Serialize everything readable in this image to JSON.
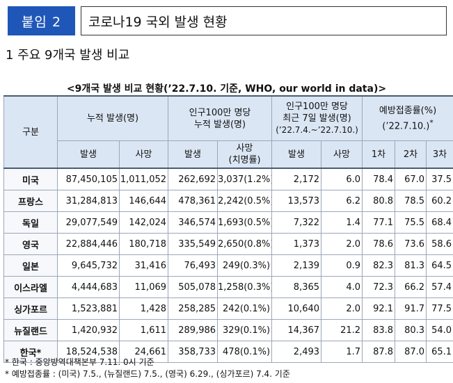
{
  "header": {
    "badge": "붙임 2",
    "title": "코로나19 국외 발생 현황"
  },
  "section_title": "1  주요 9개국 발생 비교",
  "table_caption": "<9개국 발생 비교 현황(’22.7.10. 기준, WHO, our world in data)>",
  "columns": {
    "group": "구분",
    "cumulative": "누적 발생(명)",
    "per_million_line1": "인구100만 명당",
    "per_million_line2": "누적 발생(명)",
    "recent_line1": "인구100만 명당",
    "recent_line2": "최근 7일 발생(명)",
    "recent_line3": "(’22.7.4.~’22.7.10.)",
    "vaccine_line1": "예방접종률(%)",
    "vaccine_line2": "(’22.7.10.)",
    "vaccine_mark": "*",
    "cases": "발생",
    "deaths": "사망",
    "cases2": "발생",
    "deaths2_line1": "사망",
    "deaths2_line2": "(치명률)",
    "cases3": "발생",
    "deaths3": "사망",
    "dose1": "1차",
    "dose2": "2차",
    "dose3": "3차"
  },
  "rows": [
    {
      "country": "미국",
      "cases": "87,450,105",
      "deaths": "1,011,052",
      "cases_pm": "262,692",
      "deaths_pm": "3,037(1.2%)",
      "recent_cases": "2,172",
      "recent_deaths": "6.0",
      "d1": "78.4",
      "d2": "67.0",
      "d3": "37.5"
    },
    {
      "country": "프랑스",
      "cases": "31,284,813",
      "deaths": "146,644",
      "cases_pm": "478,361",
      "deaths_pm": "2,242(0.5%)",
      "recent_cases": "13,573",
      "recent_deaths": "6.2",
      "d1": "80.8",
      "d2": "78.5",
      "d3": "60.2"
    },
    {
      "country": "독일",
      "cases": "29,077,549",
      "deaths": "142,024",
      "cases_pm": "346,574",
      "deaths_pm": "1,693(0.5%)",
      "recent_cases": "7,322",
      "recent_deaths": "1.4",
      "d1": "77.1",
      "d2": "75.5",
      "d3": "68.4"
    },
    {
      "country": "영국",
      "cases": "22,884,446",
      "deaths": "180,718",
      "cases_pm": "335,549",
      "deaths_pm": "2,650(0.8%)",
      "recent_cases": "1,373",
      "recent_deaths": "2.0",
      "d1": "78.6",
      "d2": "73.6",
      "d3": "58.6"
    },
    {
      "country": "일본",
      "cases": "9,645,732",
      "deaths": "31,416",
      "cases_pm": "76,493",
      "deaths_pm": "249(0.3%)",
      "recent_cases": "2,139",
      "recent_deaths": "0.9",
      "d1": "82.3",
      "d2": "81.3",
      "d3": "64.5"
    },
    {
      "country": "이스라엘",
      "cases": "4,444,683",
      "deaths": "11,069",
      "cases_pm": "505,078",
      "deaths_pm": "1,258(0.3%)",
      "recent_cases": "8,365",
      "recent_deaths": "4.0",
      "d1": "72.3",
      "d2": "66.2",
      "d3": "57.4"
    },
    {
      "country": "싱가포르",
      "cases": "1,523,881",
      "deaths": "1,428",
      "cases_pm": "258,285",
      "deaths_pm": "242(0.1%)",
      "recent_cases": "10,640",
      "recent_deaths": "2.0",
      "d1": "92.1",
      "d2": "91.7",
      "d3": "77.5"
    },
    {
      "country": "뉴질랜드",
      "cases": "1,420,932",
      "deaths": "1,611",
      "cases_pm": "289,986",
      "deaths_pm": "329(0.1%)",
      "recent_cases": "14,367",
      "recent_deaths": "21.2",
      "d1": "83.8",
      "d2": "80.3",
      "d3": "54.0"
    },
    {
      "country": "한국*",
      "cases": "18,524,538",
      "deaths": "24,661",
      "cases_pm": "358,733",
      "deaths_pm": "478(0.1%)",
      "recent_cases": "2,493",
      "recent_deaths": "1.7",
      "d1": "87.8",
      "d2": "87.0",
      "d3": "65.1"
    }
  ],
  "footnotes": [
    "* 한국 : 중앙방역대책본부 7.11. 0시 기준",
    "* 예방접종률 : (미국) 7.5., (뉴질랜드) 7.5., (영국) 6.29., (싱가포르) 7.4. 기준"
  ]
}
